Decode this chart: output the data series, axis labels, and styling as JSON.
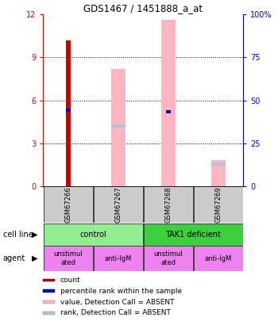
{
  "title": "GDS1467 / 1451888_a_at",
  "samples": [
    "GSM67266",
    "GSM67267",
    "GSM67268",
    "GSM67269"
  ],
  "ylim_left": [
    0,
    12
  ],
  "ylim_right": [
    0,
    100
  ],
  "yticks_left": [
    0,
    3,
    6,
    9,
    12
  ],
  "yticks_right": [
    0,
    25,
    50,
    75,
    100
  ],
  "ytick_labels_left": [
    "0",
    "3",
    "6",
    "9",
    "12"
  ],
  "ytick_labels_right": [
    "0",
    "25",
    "50",
    "75",
    "100%"
  ],
  "red_bars": [
    10.2,
    0,
    0,
    0
  ],
  "blue_markers": [
    5.3,
    0,
    5.2,
    0
  ],
  "pink_bars": [
    0,
    8.2,
    11.6,
    1.8
  ],
  "lavender_markers": [
    0,
    4.2,
    0,
    1.55
  ],
  "cell_line_labels": [
    "control",
    "TAK1 deficient"
  ],
  "cell_line_spans": [
    [
      0,
      2
    ],
    [
      2,
      4
    ]
  ],
  "cell_line_colors": [
    "#90ee90",
    "#3ecf3e"
  ],
  "agent_labels": [
    "unstimul\nated",
    "anti-IgM",
    "unstimul\nated",
    "anti-IgM"
  ],
  "sample_bg_color": "#cccccc",
  "legend_items": [
    {
      "color": "#cc0000",
      "label": "count"
    },
    {
      "color": "#0000cc",
      "label": "percentile rank within the sample"
    },
    {
      "color": "#ffb6c1",
      "label": "value, Detection Call = ABSENT"
    },
    {
      "color": "#b0c4de",
      "label": "rank, Detection Call = ABSENT"
    }
  ],
  "left_axis_color": "#cc0000",
  "right_axis_color": "#0000cc",
  "pink_bar_color": "#ffb6c1",
  "lavender_bar_color": "#b0c4de",
  "red_bar_color": "#cc0000",
  "blue_marker_color": "#0000cc",
  "agent_color": "#ee82ee"
}
